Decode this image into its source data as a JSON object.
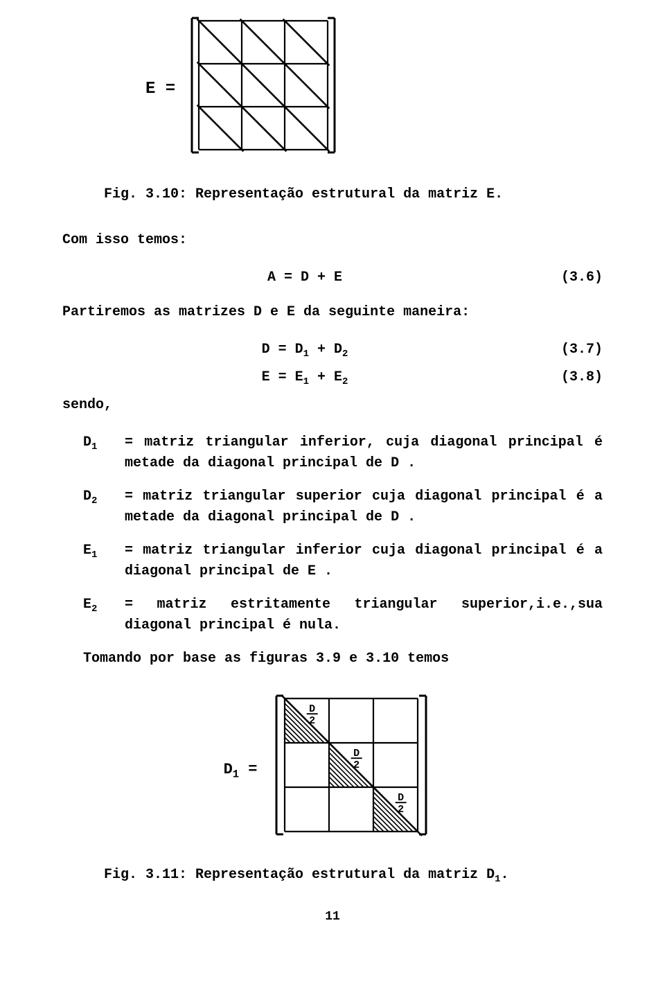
{
  "fig_top": {
    "label": "E =",
    "caption": "Fig. 3.10: Representação estrutural da matriz E.",
    "grid_rows": 3,
    "grid_cols": 3,
    "cell_size": 62,
    "stroke": "#000000",
    "stroke_width": 2.2,
    "diag_extra": 8
  },
  "intro": "Com isso temos:",
  "eq1": {
    "text": "A = D + E",
    "num": "(3.6)"
  },
  "partiremos": "Partiremos as matrizes D e E da seguinte maneira:",
  "eq2": {
    "lhs": "D = D",
    "s1": "1",
    "mid": " + D",
    "s2": "2",
    "num": "(3.7)"
  },
  "eq3": {
    "lhs": "E = E",
    "s1": "1",
    "mid": " + E",
    "s2": "2",
    "num": "(3.8)"
  },
  "sendo": "sendo,",
  "defs": {
    "d1": {
      "sym": "D",
      "sub": "1",
      "txt": "= matriz triangular inferior, cuja diagonal principal é metade da diagonal principal de D ."
    },
    "d2": {
      "sym": "D",
      "sub": "2",
      "txt": "= matriz triangular superior cuja diagonal principal é a metade da diagonal principal de D ."
    },
    "e1": {
      "sym": "E",
      "sub": "1",
      "txt": "= matriz triangular inferior cuja diagonal principal é a diagonal principal de E ."
    },
    "e2": {
      "sym": "E",
      "sub": "2",
      "txt": "= matriz estritamente triangular superior,i.e.,sua diagonal principal é nula."
    }
  },
  "tomando": "Tomando por base as figuras 3.9 e 3.10 temos",
  "fig_mid": {
    "label_main": "D",
    "label_sub": "1",
    "label_eq": " =",
    "caption_pre": "Fig. 3.11: Representação estrutural da matriz D",
    "caption_sub": "1",
    "caption_post": ".",
    "grid_rows": 3,
    "grid_cols": 3,
    "cell_size": 64,
    "stroke": "#000000",
    "stroke_width": 2.2,
    "hatch_gap": 7,
    "frac_top": "D",
    "frac_bot": "2"
  },
  "page_number": "11"
}
